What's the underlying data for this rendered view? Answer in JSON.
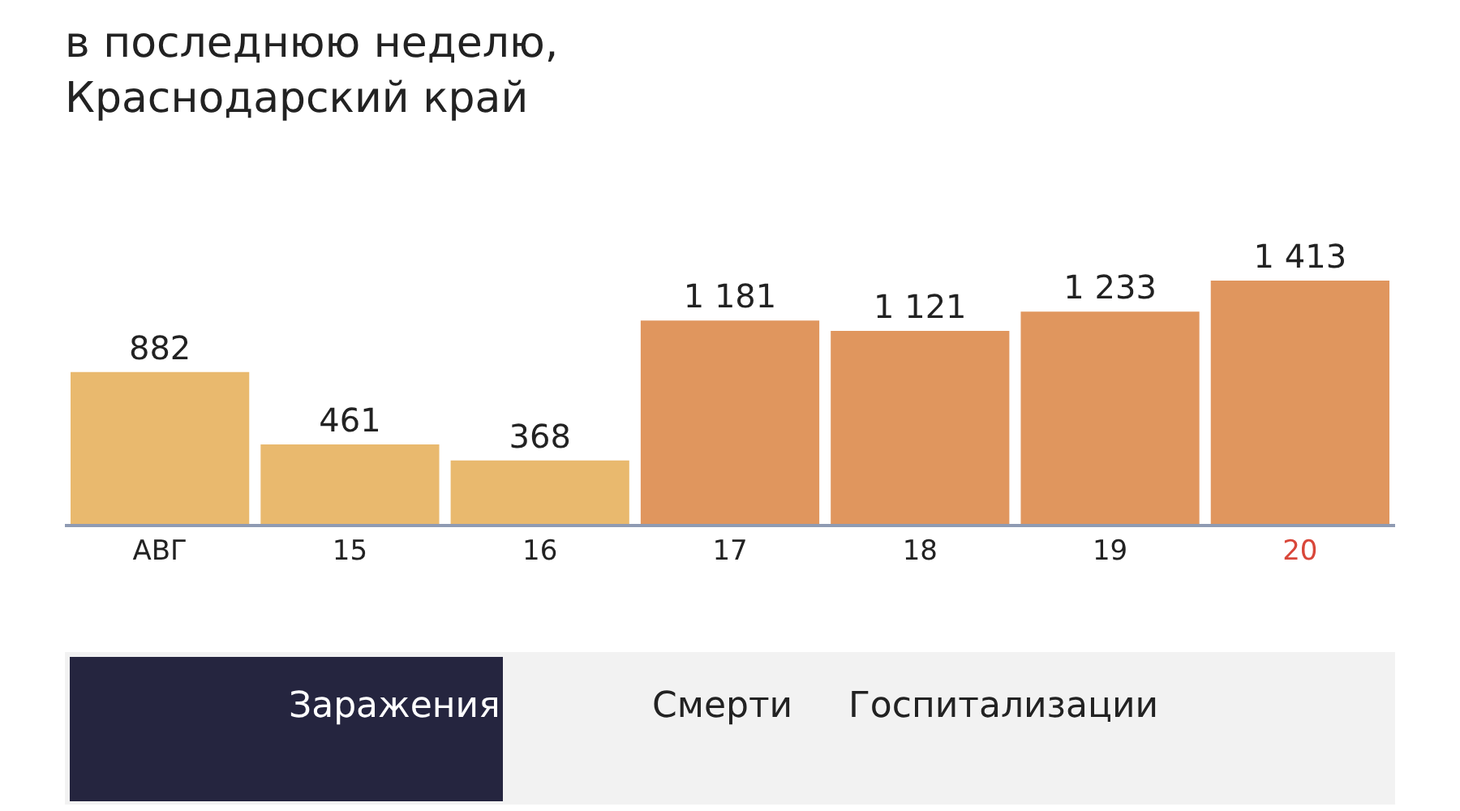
{
  "chart_data": {
    "type": "bar",
    "title": "в последнюю неделю,\nКраснодарский край",
    "categories": [
      "АВГ",
      "15",
      "16",
      "17",
      "18",
      "19",
      "20"
    ],
    "values": [
      882,
      461,
      368,
      1181,
      1121,
      1233,
      1413
    ],
    "colors": [
      "#e9b96e",
      "#e9b96e",
      "#e9b96e",
      "#e0965e",
      "#e0965e",
      "#e0965e",
      "#e0965e"
    ],
    "data_labels": true,
    "annotations": [
      "Заражения",
      "Смерти",
      "Госпитализации"
    ]
  }
}
